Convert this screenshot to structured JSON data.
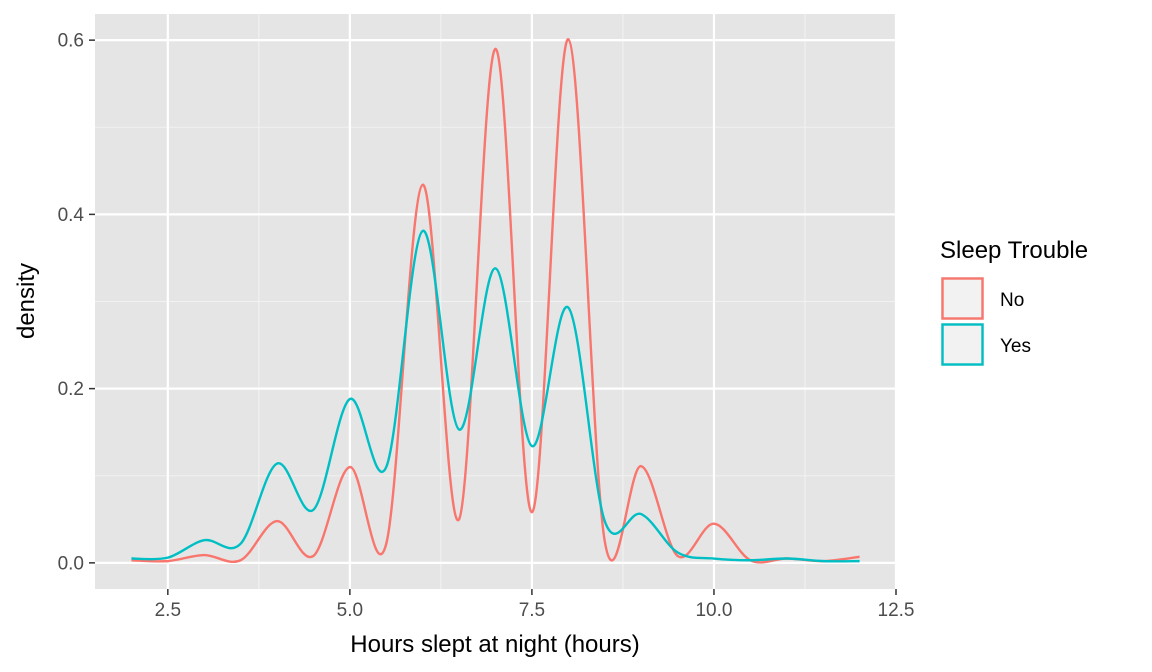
{
  "chart_data": {
    "type": "line",
    "subtype": "density",
    "title": "",
    "xlabel": "Hours slept at night (hours)",
    "ylabel": "density",
    "xlim": [
      1.5,
      12.5
    ],
    "ylim": [
      -0.03,
      0.63
    ],
    "x_ticks": [
      2.5,
      5.0,
      7.5,
      10.0,
      12.5
    ],
    "x_tick_labels": [
      "2.5",
      "5.0",
      "7.5",
      "10.0",
      "12.5"
    ],
    "y_ticks": [
      0.0,
      0.2,
      0.4,
      0.6
    ],
    "y_tick_labels": [
      "0.0",
      "0.2",
      "0.4",
      "0.6"
    ],
    "grid": true,
    "panel_background": "#e5e5e5",
    "legend": {
      "title": "Sleep Trouble",
      "position": "right"
    },
    "series": [
      {
        "name": "No",
        "color": "#f8766d",
        "points": [
          [
            2.0,
            0.003
          ],
          [
            2.5,
            0.002
          ],
          [
            3.0,
            0.009
          ],
          [
            3.5,
            0.003
          ],
          [
            4.0,
            0.048
          ],
          [
            4.5,
            0.008
          ],
          [
            5.0,
            0.11
          ],
          [
            5.5,
            0.022
          ],
          [
            6.0,
            0.434
          ],
          [
            6.5,
            0.05
          ],
          [
            7.0,
            0.59
          ],
          [
            7.5,
            0.058
          ],
          [
            8.0,
            0.601
          ],
          [
            8.5,
            0.025
          ],
          [
            9.0,
            0.111
          ],
          [
            9.5,
            0.008
          ],
          [
            10.0,
            0.045
          ],
          [
            10.5,
            0.003
          ],
          [
            11.0,
            0.005
          ],
          [
            11.5,
            0.002
          ],
          [
            12.0,
            0.007
          ]
        ]
      },
      {
        "name": "Yes",
        "color": "#00bfc4",
        "points": [
          [
            2.0,
            0.005
          ],
          [
            2.5,
            0.006
          ],
          [
            3.0,
            0.026
          ],
          [
            3.5,
            0.022
          ],
          [
            4.0,
            0.114
          ],
          [
            4.5,
            0.061
          ],
          [
            5.0,
            0.188
          ],
          [
            5.5,
            0.11
          ],
          [
            6.0,
            0.381
          ],
          [
            6.5,
            0.153
          ],
          [
            7.0,
            0.338
          ],
          [
            7.5,
            0.134
          ],
          [
            8.0,
            0.293
          ],
          [
            8.5,
            0.048
          ],
          [
            9.0,
            0.056
          ],
          [
            9.5,
            0.012
          ],
          [
            10.0,
            0.005
          ],
          [
            10.5,
            0.003
          ],
          [
            11.0,
            0.005
          ],
          [
            11.5,
            0.002
          ],
          [
            12.0,
            0.002
          ]
        ]
      }
    ]
  }
}
